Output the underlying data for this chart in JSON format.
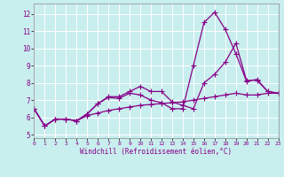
{
  "background_color": "#c8eeee",
  "grid_color": "#aadddd",
  "line_color": "#880088",
  "xlabel": "Windchill (Refroidissement éolien,°C)",
  "ylim": [
    4.8,
    12.6
  ],
  "xlim": [
    0,
    23
  ],
  "yticks": [
    5,
    6,
    7,
    8,
    9,
    10,
    11,
    12
  ],
  "xticks": [
    0,
    1,
    2,
    3,
    4,
    5,
    6,
    7,
    8,
    9,
    10,
    11,
    12,
    13,
    14,
    15,
    16,
    17,
    18,
    19,
    20,
    21,
    22,
    23
  ],
  "series": [
    {
      "x": [
        0,
        1,
        2,
        3,
        4,
        5,
        6,
        7,
        8,
        9,
        10,
        11,
        12,
        13,
        14,
        15,
        16,
        17,
        18,
        19,
        20,
        21,
        22,
        23
      ],
      "y": [
        6.5,
        5.5,
        5.9,
        5.9,
        5.8,
        6.1,
        6.25,
        6.4,
        6.5,
        6.6,
        6.7,
        6.75,
        6.8,
        6.85,
        6.9,
        7.0,
        7.1,
        7.2,
        7.3,
        7.4,
        7.3,
        7.3,
        7.4,
        7.4
      ]
    },
    {
      "x": [
        0,
        1,
        2,
        3,
        4,
        5,
        6,
        7,
        8,
        9,
        10,
        11,
        12,
        13,
        14,
        15,
        16,
        17,
        18,
        19,
        20,
        21,
        22,
        23
      ],
      "y": [
        6.5,
        5.5,
        5.9,
        5.9,
        5.8,
        6.2,
        6.8,
        7.2,
        7.2,
        7.5,
        7.8,
        7.5,
        7.5,
        6.9,
        6.7,
        6.5,
        8.0,
        8.5,
        9.2,
        10.3,
        8.15,
        8.15,
        7.5,
        7.4
      ]
    },
    {
      "x": [
        0,
        1,
        2,
        3,
        4,
        5,
        6,
        7,
        8,
        9,
        10,
        11,
        12,
        13,
        14,
        15,
        16,
        17,
        18,
        19,
        20,
        21,
        22,
        23
      ],
      "y": [
        6.5,
        5.5,
        5.9,
        5.9,
        5.8,
        6.2,
        6.8,
        7.15,
        7.1,
        7.4,
        7.3,
        7.0,
        6.85,
        6.5,
        6.5,
        9.0,
        11.5,
        12.1,
        11.1,
        9.7,
        8.1,
        8.2,
        7.5,
        7.4
      ]
    }
  ],
  "marker": "+",
  "markersize": 4,
  "linewidth": 0.9
}
